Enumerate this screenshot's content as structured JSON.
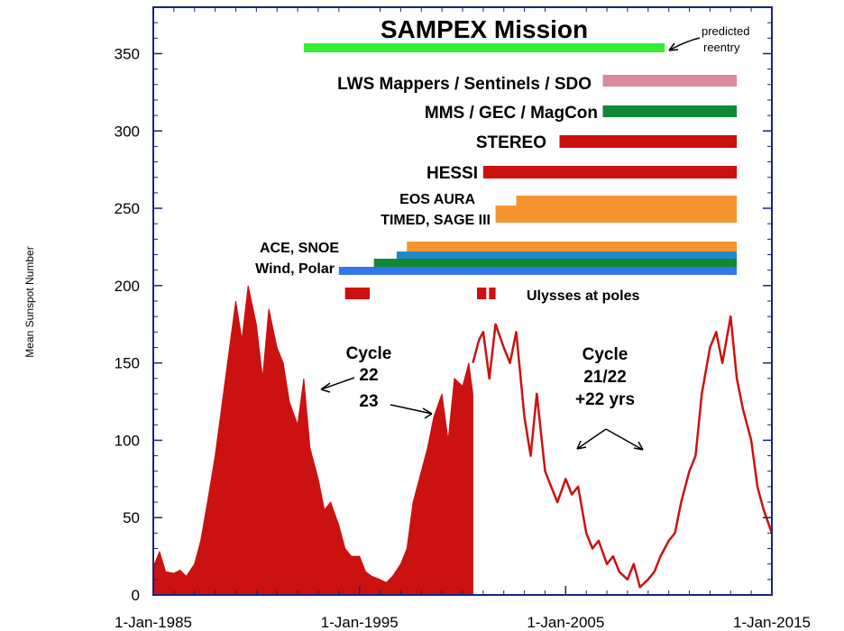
{
  "chart_data": {
    "type": "area",
    "title": "SAMPEX Mission",
    "ylabel": "Mean Sunspot Number",
    "xlabel": "",
    "xlim": [
      1985.0,
      2015.0
    ],
    "ylim": [
      0,
      380
    ],
    "x_ticks": [
      {
        "value": 1985,
        "label": "1-Jan-1985"
      },
      {
        "value": 1995,
        "label": "1-Jan-1995"
      },
      {
        "value": 2005,
        "label": "1-Jan-2005"
      },
      {
        "value": 2015,
        "label": "1-Jan-2015"
      }
    ],
    "y_ticks": [
      0,
      50,
      100,
      150,
      200,
      250,
      300,
      350
    ],
    "series": [
      {
        "kind": "filled",
        "color": "#cc1111",
        "x": [
          1985.0,
          1985.3,
          1985.6,
          1986.0,
          1986.3,
          1986.6,
          1987.0,
          1987.3,
          1987.6,
          1988.0,
          1988.3,
          1988.6,
          1989.0,
          1989.3,
          1989.6,
          1990.0,
          1990.3,
          1990.6,
          1991.0,
          1991.3,
          1991.6,
          1992.0,
          1992.3,
          1992.6,
          1993.0,
          1993.3,
          1993.6,
          1994.0,
          1994.3,
          1994.6,
          1995.0,
          1995.3,
          1995.6,
          1996.0,
          1996.3,
          1996.6,
          1997.0,
          1997.3,
          1997.6,
          1998.0,
          1998.3,
          1998.6,
          1999.0,
          1999.3,
          1999.6,
          2000.0,
          2000.3,
          2000.5
        ],
        "y": [
          18,
          28,
          15,
          14,
          16,
          12,
          20,
          35,
          58,
          90,
          120,
          150,
          190,
          165,
          200,
          175,
          140,
          185,
          160,
          150,
          125,
          110,
          140,
          95,
          75,
          55,
          60,
          45,
          30,
          25,
          25,
          15,
          12,
          10,
          8,
          12,
          20,
          30,
          60,
          80,
          95,
          115,
          130,
          100,
          140,
          135,
          150,
          130
        ]
      },
      {
        "kind": "line",
        "color": "#cc1111",
        "x": [
          2000.5,
          2000.8,
          2001.0,
          2001.3,
          2001.6,
          2002.0,
          2002.3,
          2002.6,
          2003.0,
          2003.3,
          2003.6,
          2004.0,
          2004.3,
          2004.6,
          2005.0,
          2005.3,
          2005.6,
          2006.0,
          2006.3,
          2006.6,
          2007.0,
          2007.3,
          2007.6,
          2008.0,
          2008.3,
          2008.6,
          2009.0,
          2009.3,
          2009.6,
          2010.0,
          2010.3,
          2010.6,
          2011.0,
          2011.3,
          2011.6,
          2012.0,
          2012.3,
          2012.6,
          2013.0,
          2013.3,
          2013.6,
          2014.0,
          2014.3,
          2014.6,
          2015.0
        ],
        "y": [
          150,
          165,
          170,
          140,
          175,
          160,
          150,
          170,
          115,
          90,
          130,
          80,
          70,
          60,
          75,
          65,
          70,
          40,
          30,
          35,
          20,
          25,
          15,
          10,
          20,
          5,
          10,
          15,
          25,
          35,
          40,
          60,
          80,
          90,
          130,
          160,
          170,
          150,
          180,
          140,
          120,
          100,
          70,
          55,
          40
        ]
      }
    ],
    "missions": [
      {
        "label": "SAMPEX Mission",
        "bars": [
          {
            "start": 1992.3,
            "end": 2009.8,
            "color": "#33ee33"
          }
        ]
      },
      {
        "label": "LWS Mappers / Sentinels / SDO",
        "bars": [
          {
            "start": 2006.8,
            "end": 2013.3,
            "color": "#d98a9e"
          }
        ]
      },
      {
        "label": "MMS / GEC / MagCon",
        "bars": [
          {
            "start": 2006.8,
            "end": 2013.3,
            "color": "#118833"
          }
        ]
      },
      {
        "label": "STEREO",
        "bars": [
          {
            "start": 2004.7,
            "end": 2013.3,
            "color": "#cc1111"
          }
        ]
      },
      {
        "label": "HESSI",
        "bars": [
          {
            "start": 2001.0,
            "end": 2013.3,
            "color": "#cc1111"
          }
        ]
      },
      {
        "label": "EOS AURA",
        "bars": [
          {
            "start": 2002.6,
            "end": 2013.3,
            "color": "#f59430"
          }
        ]
      },
      {
        "label": "TIMED, SAGE III",
        "bars": [
          {
            "start": 2001.6,
            "end": 2013.3,
            "color": "#f59430"
          }
        ]
      },
      {
        "label": "ACE, SNOE",
        "bars": [
          {
            "start": 1997.3,
            "end": 2013.3,
            "color": "#f59430"
          },
          {
            "start": 1996.8,
            "end": 2013.3,
            "color": "#2288cc"
          }
        ]
      },
      {
        "label": "Wind, Polar",
        "bars": [
          {
            "start": 1995.7,
            "end": 2013.3,
            "color": "#118833"
          },
          {
            "start": 1994.0,
            "end": 2013.3,
            "color": "#3377ee"
          }
        ]
      },
      {
        "label": "Ulysses at poles",
        "bars": [
          {
            "start": 1994.3,
            "end": 1995.5,
            "color": "#cc1111"
          },
          {
            "start": 2000.7,
            "end": 2001.6,
            "color": "#cc1111"
          }
        ]
      }
    ],
    "annotations": [
      {
        "text": "predicted",
        "line": 1
      },
      {
        "text": "reentry",
        "line": 2
      },
      {
        "text": "Cycle",
        "group": "c22"
      },
      {
        "text": "22",
        "group": "c22"
      },
      {
        "text": "23",
        "group": "c22"
      },
      {
        "text": "Cycle",
        "group": "c2122"
      },
      {
        "text": "21/22",
        "group": "c2122"
      },
      {
        "text": "+22 yrs",
        "group": "c2122"
      }
    ]
  }
}
